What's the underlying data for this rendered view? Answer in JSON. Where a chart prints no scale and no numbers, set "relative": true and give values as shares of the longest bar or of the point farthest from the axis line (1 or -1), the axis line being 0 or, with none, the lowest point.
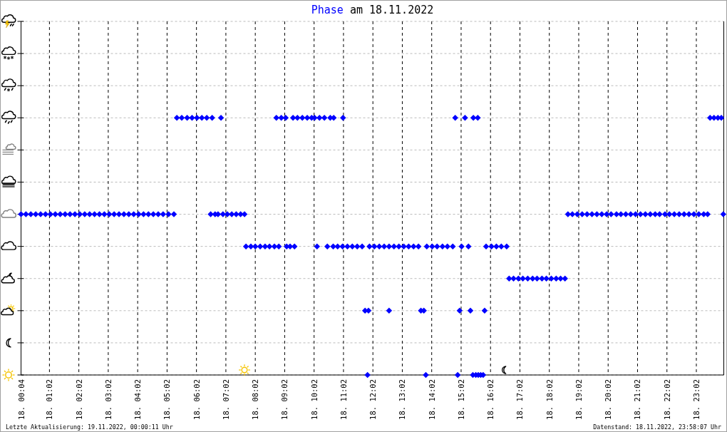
{
  "chart_data": {
    "type": "scatter",
    "title": "am 18.11.2022",
    "relative": true,
    "xlim": [
      "2022-11-18T00:04",
      "2022-11-18T23:58"
    ],
    "xticks": [
      {
        "value": "2022-11-18T00:04",
        "label": "18. 00:04"
      },
      {
        "value": "2022-11-18T01:02",
        "label": "18. 01:02"
      },
      {
        "value": "2022-11-18T02:02",
        "label": "18. 02:02"
      },
      {
        "value": "2022-11-18T03:02",
        "label": "18. 03:02"
      },
      {
        "value": "2022-11-18T04:02",
        "label": "18. 04:02"
      },
      {
        "value": "2022-11-18T05:02",
        "label": "18. 05:02"
      },
      {
        "value": "2022-11-18T06:02",
        "label": "18. 06:02"
      },
      {
        "value": "2022-11-18T07:02",
        "label": "18. 07:02"
      },
      {
        "value": "2022-11-18T08:02",
        "label": "18. 08:02"
      },
      {
        "value": "2022-11-18T09:02",
        "label": "18. 09:02"
      },
      {
        "value": "2022-11-18T10:02",
        "label": "18. 10:02"
      },
      {
        "value": "2022-11-18T11:02",
        "label": "18. 11:02"
      },
      {
        "value": "2022-11-18T12:02",
        "label": "18. 12:02"
      },
      {
        "value": "2022-11-18T13:02",
        "label": "18. 13:02"
      },
      {
        "value": "2022-11-18T14:02",
        "label": "18. 14:02"
      },
      {
        "value": "2022-11-18T15:02",
        "label": "18. 15:02"
      },
      {
        "value": "2022-11-18T16:02",
        "label": "18. 16:02"
      },
      {
        "value": "2022-11-18T17:02",
        "label": "18. 17:02"
      },
      {
        "value": "2022-11-18T18:02",
        "label": "18. 18:02"
      },
      {
        "value": "2022-11-18T19:02",
        "label": "18. 19:02"
      },
      {
        "value": "2022-11-18T20:02",
        "label": "18. 20:02"
      },
      {
        "value": "2022-11-18T21:02",
        "label": "18. 21:02"
      },
      {
        "value": "2022-11-18T22:02",
        "label": "18. 22:02"
      },
      {
        "value": "2022-11-18T23:02",
        "label": "18. 23:02"
      }
    ],
    "grid": true,
    "marker": "diamond",
    "x": [
      "2022-11-18T00:04",
      "2022-11-18T00:14",
      "2022-11-18T00:24",
      "2022-11-18T00:34",
      "2022-11-18T00:44",
      "2022-11-18T00:54",
      "2022-11-18T01:04",
      "2022-11-18T01:14",
      "2022-11-18T01:24",
      "2022-11-18T01:34",
      "2022-11-18T01:44",
      "2022-11-18T01:54",
      "2022-11-18T02:04",
      "2022-11-18T02:14",
      "2022-11-18T02:24",
      "2022-11-18T02:34",
      "2022-11-18T02:44",
      "2022-11-18T02:54",
      "2022-11-18T03:04",
      "2022-11-18T03:14",
      "2022-11-18T03:24",
      "2022-11-18T03:34",
      "2022-11-18T03:44",
      "2022-11-18T03:54",
      "2022-11-18T04:04",
      "2022-11-18T04:14",
      "2022-11-18T04:24",
      "2022-11-18T04:34",
      "2022-11-18T04:44",
      "2022-11-18T04:54",
      "2022-11-18T05:05",
      "2022-11-18T05:16",
      "2022-11-18T05:22",
      "2022-11-18T05:32",
      "2022-11-18T05:43",
      "2022-11-18T05:53",
      "2022-11-18T06:03",
      "2022-11-18T06:13",
      "2022-11-18T06:23",
      "2022-11-18T06:34",
      "2022-11-18T06:31",
      "2022-11-18T06:40",
      "2022-11-18T06:46",
      "2022-11-18T06:52",
      "2022-11-18T06:56",
      "2022-11-18T07:05",
      "2022-11-18T07:14",
      "2022-11-18T07:23",
      "2022-11-18T07:32",
      "2022-11-18T07:40",
      "2022-11-18T07:43",
      "2022-11-18T07:53",
      "2022-11-18T08:02",
      "2022-11-18T08:12",
      "2022-11-18T08:22",
      "2022-11-18T08:31",
      "2022-11-18T08:41",
      "2022-11-18T08:50",
      "2022-11-18T08:45",
      "2022-11-18T08:55",
      "2022-11-18T09:04",
      "2022-11-18T09:06",
      "2022-11-18T09:13",
      "2022-11-18T09:22",
      "2022-11-18T09:19",
      "2022-11-18T09:28",
      "2022-11-18T09:38",
      "2022-11-18T09:48",
      "2022-11-18T09:57",
      "2022-11-18T10:03",
      "2022-11-18T10:08",
      "2022-11-18T10:13",
      "2022-11-18T10:23",
      "2022-11-18T10:29",
      "2022-11-18T10:35",
      "2022-11-18T10:42",
      "2022-11-18T10:41",
      "2022-11-18T10:50",
      "2022-11-18T11:00",
      "2022-11-18T11:10",
      "2022-11-18T11:20",
      "2022-11-18T11:30",
      "2022-11-18T11:40",
      "2022-11-18T11:01",
      "2022-11-18T11:46",
      "2022-11-18T11:51",
      "2022-11-18T11:53",
      "2022-11-18T11:55",
      "2022-11-18T12:05",
      "2022-11-18T12:15",
      "2022-11-18T12:25",
      "2022-11-18T12:35",
      "2022-11-18T12:45",
      "2022-11-18T12:55",
      "2022-11-18T13:05",
      "2022-11-18T13:15",
      "2022-11-18T13:25",
      "2022-11-18T13:35",
      "2022-11-18T12:35",
      "2022-11-18T13:40",
      "2022-11-18T13:46",
      "2022-11-18T13:50",
      "2022-11-18T13:52",
      "2022-11-18T14:03",
      "2022-11-18T14:13",
      "2022-11-18T14:24",
      "2022-11-18T14:34",
      "2022-11-18T14:45",
      "2022-11-18T14:50",
      "2022-11-18T14:55",
      "2022-11-18T14:59",
      "2022-11-18T15:03",
      "2022-11-18T15:10",
      "2022-11-18T15:17",
      "2022-11-18T15:21",
      "2022-11-18T15:26",
      "2022-11-18T15:27",
      "2022-11-18T15:32",
      "2022-11-18T15:36",
      "2022-11-18T15:37",
      "2022-11-18T15:42",
      "2022-11-18T15:47",
      "2022-11-18T15:50",
      "2022-11-18T15:53",
      "2022-11-18T16:04",
      "2022-11-18T16:14",
      "2022-11-18T16:24",
      "2022-11-18T16:35",
      "2022-11-18T16:40",
      "2022-11-18T16:49",
      "2022-11-18T16:59",
      "2022-11-18T17:08",
      "2022-11-18T17:18",
      "2022-11-18T17:28",
      "2022-11-18T17:37",
      "2022-11-18T17:47",
      "2022-11-18T17:56",
      "2022-11-18T18:06",
      "2022-11-18T18:16",
      "2022-11-18T18:25",
      "2022-11-18T18:34",
      "2022-11-18T18:40",
      "2022-11-18T18:49",
      "2022-11-18T18:59",
      "2022-11-18T19:09",
      "2022-11-18T19:19",
      "2022-11-18T19:29",
      "2022-11-18T19:39",
      "2022-11-18T19:49",
      "2022-11-18T19:59",
      "2022-11-18T20:08",
      "2022-11-18T20:19",
      "2022-11-18T20:28",
      "2022-11-18T20:38",
      "2022-11-18T20:48",
      "2022-11-18T20:58",
      "2022-11-18T21:08",
      "2022-11-18T21:18",
      "2022-11-18T21:28",
      "2022-11-18T21:38",
      "2022-11-18T21:47",
      "2022-11-18T21:58",
      "2022-11-18T22:07",
      "2022-11-18T22:17",
      "2022-11-18T22:27",
      "2022-11-18T22:37",
      "2022-11-18T22:47",
      "2022-11-18T22:57",
      "2022-11-18T23:07",
      "2022-11-18T23:17",
      "2022-11-18T23:25",
      "2022-11-18T23:30",
      "2022-11-18T23:38",
      "2022-11-18T23:46",
      "2022-11-18T23:53",
      "2022-11-18T23:57"
    ],
    "series": [
      {
        "name": "Phase",
        "color": "#0000ff",
        "values": [
          0.625,
          0.625,
          0.625,
          0.625,
          0.625,
          0.625,
          0.625,
          0.625,
          0.625,
          0.625,
          0.625,
          0.625,
          0.625,
          0.625,
          0.625,
          0.625,
          0.625,
          0.625,
          0.625,
          0.625,
          0.625,
          0.625,
          0.625,
          0.625,
          0.625,
          0.625,
          0.625,
          0.625,
          0.625,
          0.625,
          0.625,
          0.625,
          1,
          1,
          1,
          1,
          1,
          1,
          1,
          1,
          0.625,
          0.625,
          0.625,
          1,
          0.625,
          0.625,
          0.625,
          0.625,
          0.625,
          0.625,
          0.5,
          0.5,
          0.5,
          0.5,
          0.5,
          0.5,
          0.5,
          0.5,
          1,
          1,
          1,
          0.5,
          0.5,
          0.5,
          1,
          1,
          1,
          1,
          1,
          1,
          0.5,
          1,
          1,
          0.5,
          1,
          1,
          0.5,
          0.5,
          0.5,
          0.5,
          0.5,
          0.5,
          0.5,
          1,
          0.25,
          0,
          0.25,
          0.5,
          0.5,
          0.5,
          0.5,
          0.5,
          0.5,
          0.5,
          0.5,
          0.5,
          0.5,
          0.5,
          0.25,
          0.25,
          0.25,
          0,
          0.5,
          0.5,
          0.5,
          0.5,
          0.5,
          0.5,
          1,
          0,
          0.25,
          0.5,
          1,
          0.5,
          0.25,
          0,
          1,
          0,
          1,
          0,
          0,
          0,
          0.25,
          0.5,
          0.5,
          0.5,
          0.5,
          0.5,
          0.375,
          0.375,
          0.375,
          0.375,
          0.375,
          0.375,
          0.375,
          0.375,
          0.375,
          0.375,
          0.375,
          0.375,
          0.375,
          0.625,
          0.625,
          0.625,
          0.625,
          0.625,
          0.625,
          0.625,
          0.625,
          0.625,
          0.625,
          0.625,
          0.625,
          0.625,
          0.625,
          0.625,
          0.625,
          0.625,
          0.625,
          0.625,
          0.625,
          0.625,
          0.625,
          0.625,
          0.625,
          0.625,
          0.625,
          0.625,
          0.625,
          0.625,
          0.625,
          1,
          1,
          1,
          1,
          0.625
        ]
      }
    ],
    "annotations": [
      "Letzte Aktualisierung: 19.11.2022, 00:00:11 Uhr",
      "Datenstand: 18.11.2022, 23:58:07 Uhr"
    ]
  }
}
